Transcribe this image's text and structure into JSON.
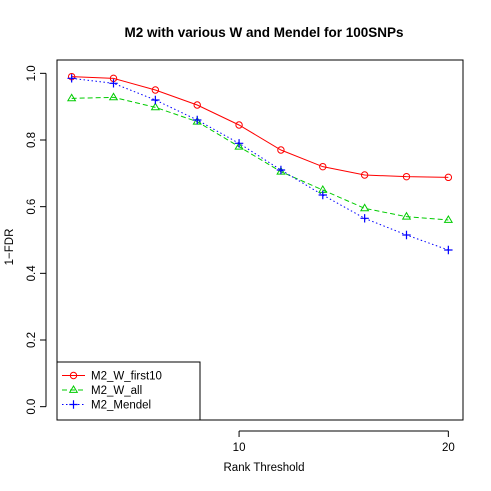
{
  "chart_data": {
    "type": "line",
    "title": "M2 with various W and Mendel for 100SNPs",
    "xlabel": "Rank Threshold",
    "ylabel": "1−FDR",
    "xlim": [
      1.3,
      20.7
    ],
    "ylim": [
      -0.04,
      1.04
    ],
    "xticks": [
      10,
      20
    ],
    "yticks": [
      0.0,
      0.2,
      0.4,
      0.6,
      0.8,
      1.0
    ],
    "ytick_labels": [
      "0.0",
      "0.2",
      "0.4",
      "0.6",
      "0.8",
      "1.0"
    ],
    "grid": false,
    "legend_position": "bottom-left",
    "x": [
      2,
      4,
      6,
      8,
      10,
      12,
      14,
      16,
      18,
      20
    ],
    "series": [
      {
        "name": "M2_W_first10",
        "color": "#ff0000",
        "line_style": "solid",
        "marker": "circle",
        "values": [
          0.99,
          0.985,
          0.95,
          0.905,
          0.845,
          0.77,
          0.72,
          0.695,
          0.69,
          0.688
        ]
      },
      {
        "name": "M2_W_all",
        "color": "#00cc00",
        "line_style": "dashed",
        "marker": "triangle",
        "values": [
          0.925,
          0.928,
          0.898,
          0.855,
          0.78,
          0.705,
          0.65,
          0.595,
          0.57,
          0.56
        ]
      },
      {
        "name": "M2_Mendel",
        "color": "#0000ff",
        "line_style": "dotted",
        "marker": "plus",
        "values": [
          0.985,
          0.97,
          0.92,
          0.86,
          0.79,
          0.71,
          0.635,
          0.565,
          0.515,
          0.47
        ]
      }
    ]
  }
}
